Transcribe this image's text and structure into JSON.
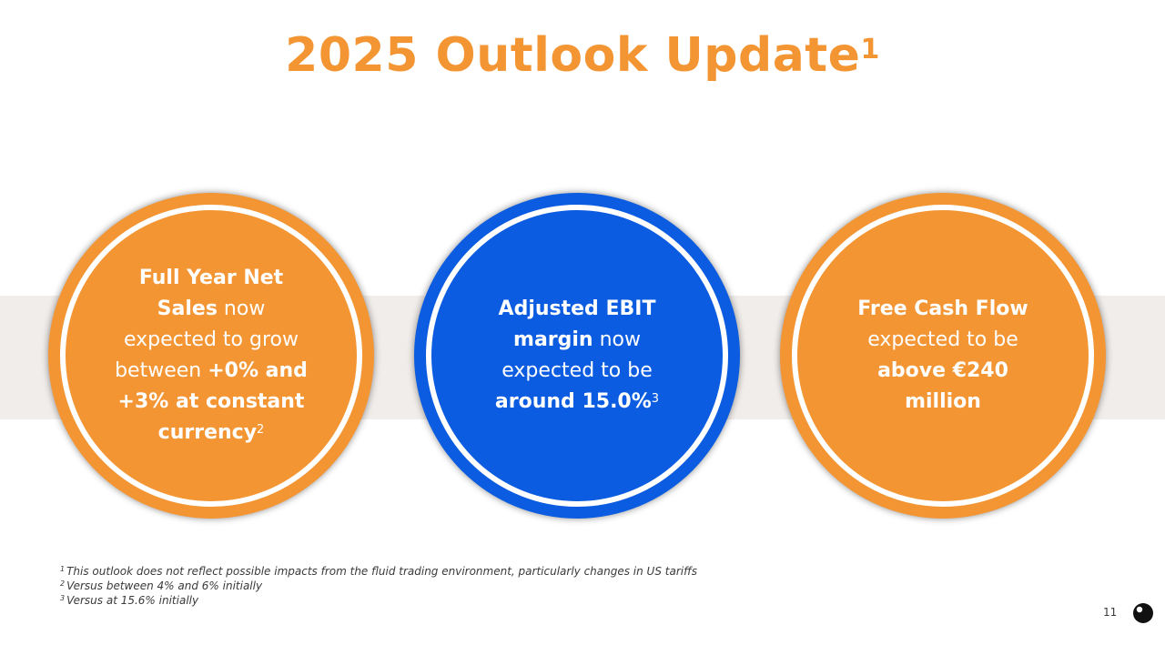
{
  "title": {
    "text": "2025 Outlook Update",
    "sup": "1"
  },
  "circles": [
    {
      "color": "#f39533",
      "lines": [
        [
          {
            "t": "Full Year Net",
            "b": true
          }
        ],
        [
          {
            "t": "Sales",
            "b": true
          },
          {
            "t": " now",
            "b": false
          }
        ],
        [
          {
            "t": "expected to grow",
            "b": false
          }
        ],
        [
          {
            "t": "between ",
            "b": false
          },
          {
            "t": "+0% and",
            "b": true
          }
        ],
        [
          {
            "t": "+3% at constant",
            "b": true
          }
        ],
        [
          {
            "t": "currency",
            "b": true
          },
          {
            "t": "2",
            "sup": true
          }
        ]
      ]
    },
    {
      "color": "#0b5ce0",
      "lines": [
        [
          {
            "t": "Adjusted EBIT",
            "b": true
          }
        ],
        [
          {
            "t": "margin",
            "b": true
          },
          {
            "t": " now",
            "b": false
          }
        ],
        [
          {
            "t": "expected to be",
            "b": false
          }
        ],
        [
          {
            "t": "around 15.0%",
            "b": true
          },
          {
            "t": "3",
            "sup": true
          }
        ]
      ]
    },
    {
      "color": "#f39533",
      "lines": [
        [
          {
            "t": "Free Cash Flow",
            "b": true
          }
        ],
        [
          {
            "t": "expected to be",
            "b": false
          }
        ],
        [
          {
            "t": "above €240",
            "b": true
          }
        ],
        [
          {
            "t": "million",
            "b": true
          }
        ]
      ]
    }
  ],
  "footnotes": [
    {
      "num": "1",
      "text": "This outlook does not reflect possible impacts from the fluid trading environment, particularly changes in US tariffs"
    },
    {
      "num": "2",
      "text": "Versus between 4% and 6% initially"
    },
    {
      "num": "3",
      "text": "Versus at 15.6% initially"
    }
  ],
  "page_number": "11",
  "logo_icon": "round-black-logo-icon"
}
